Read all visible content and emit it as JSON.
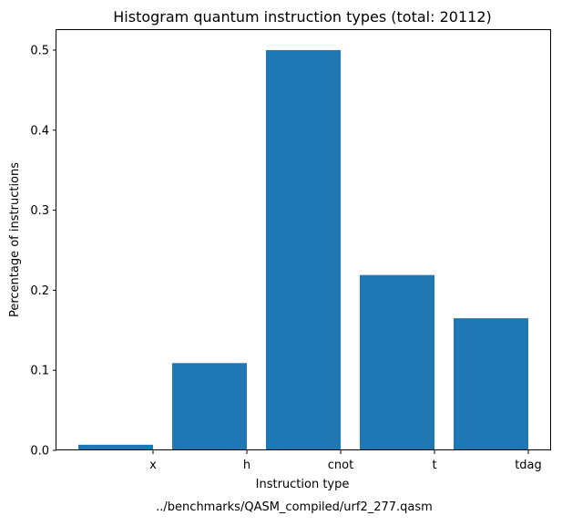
{
  "chart_data": {
    "type": "bar",
    "title": "Histogram quantum instruction types (total: 20112)",
    "xlabel": "Instruction type",
    "ylabel": "Percentage of instructions",
    "caption": "../benchmarks/QASM_compiled/urf2_277.qasm",
    "categories": [
      "x",
      "h",
      "cnot",
      "t",
      "tdag"
    ],
    "values": [
      0.007,
      0.109,
      0.5,
      0.219,
      0.165
    ],
    "ylim": [
      0,
      0.525
    ],
    "yticks": [
      "0.0",
      "0.1",
      "0.2",
      "0.3",
      "0.4",
      "0.5"
    ],
    "bar_color": "#1f77b4",
    "grid": false,
    "legend": "none"
  }
}
